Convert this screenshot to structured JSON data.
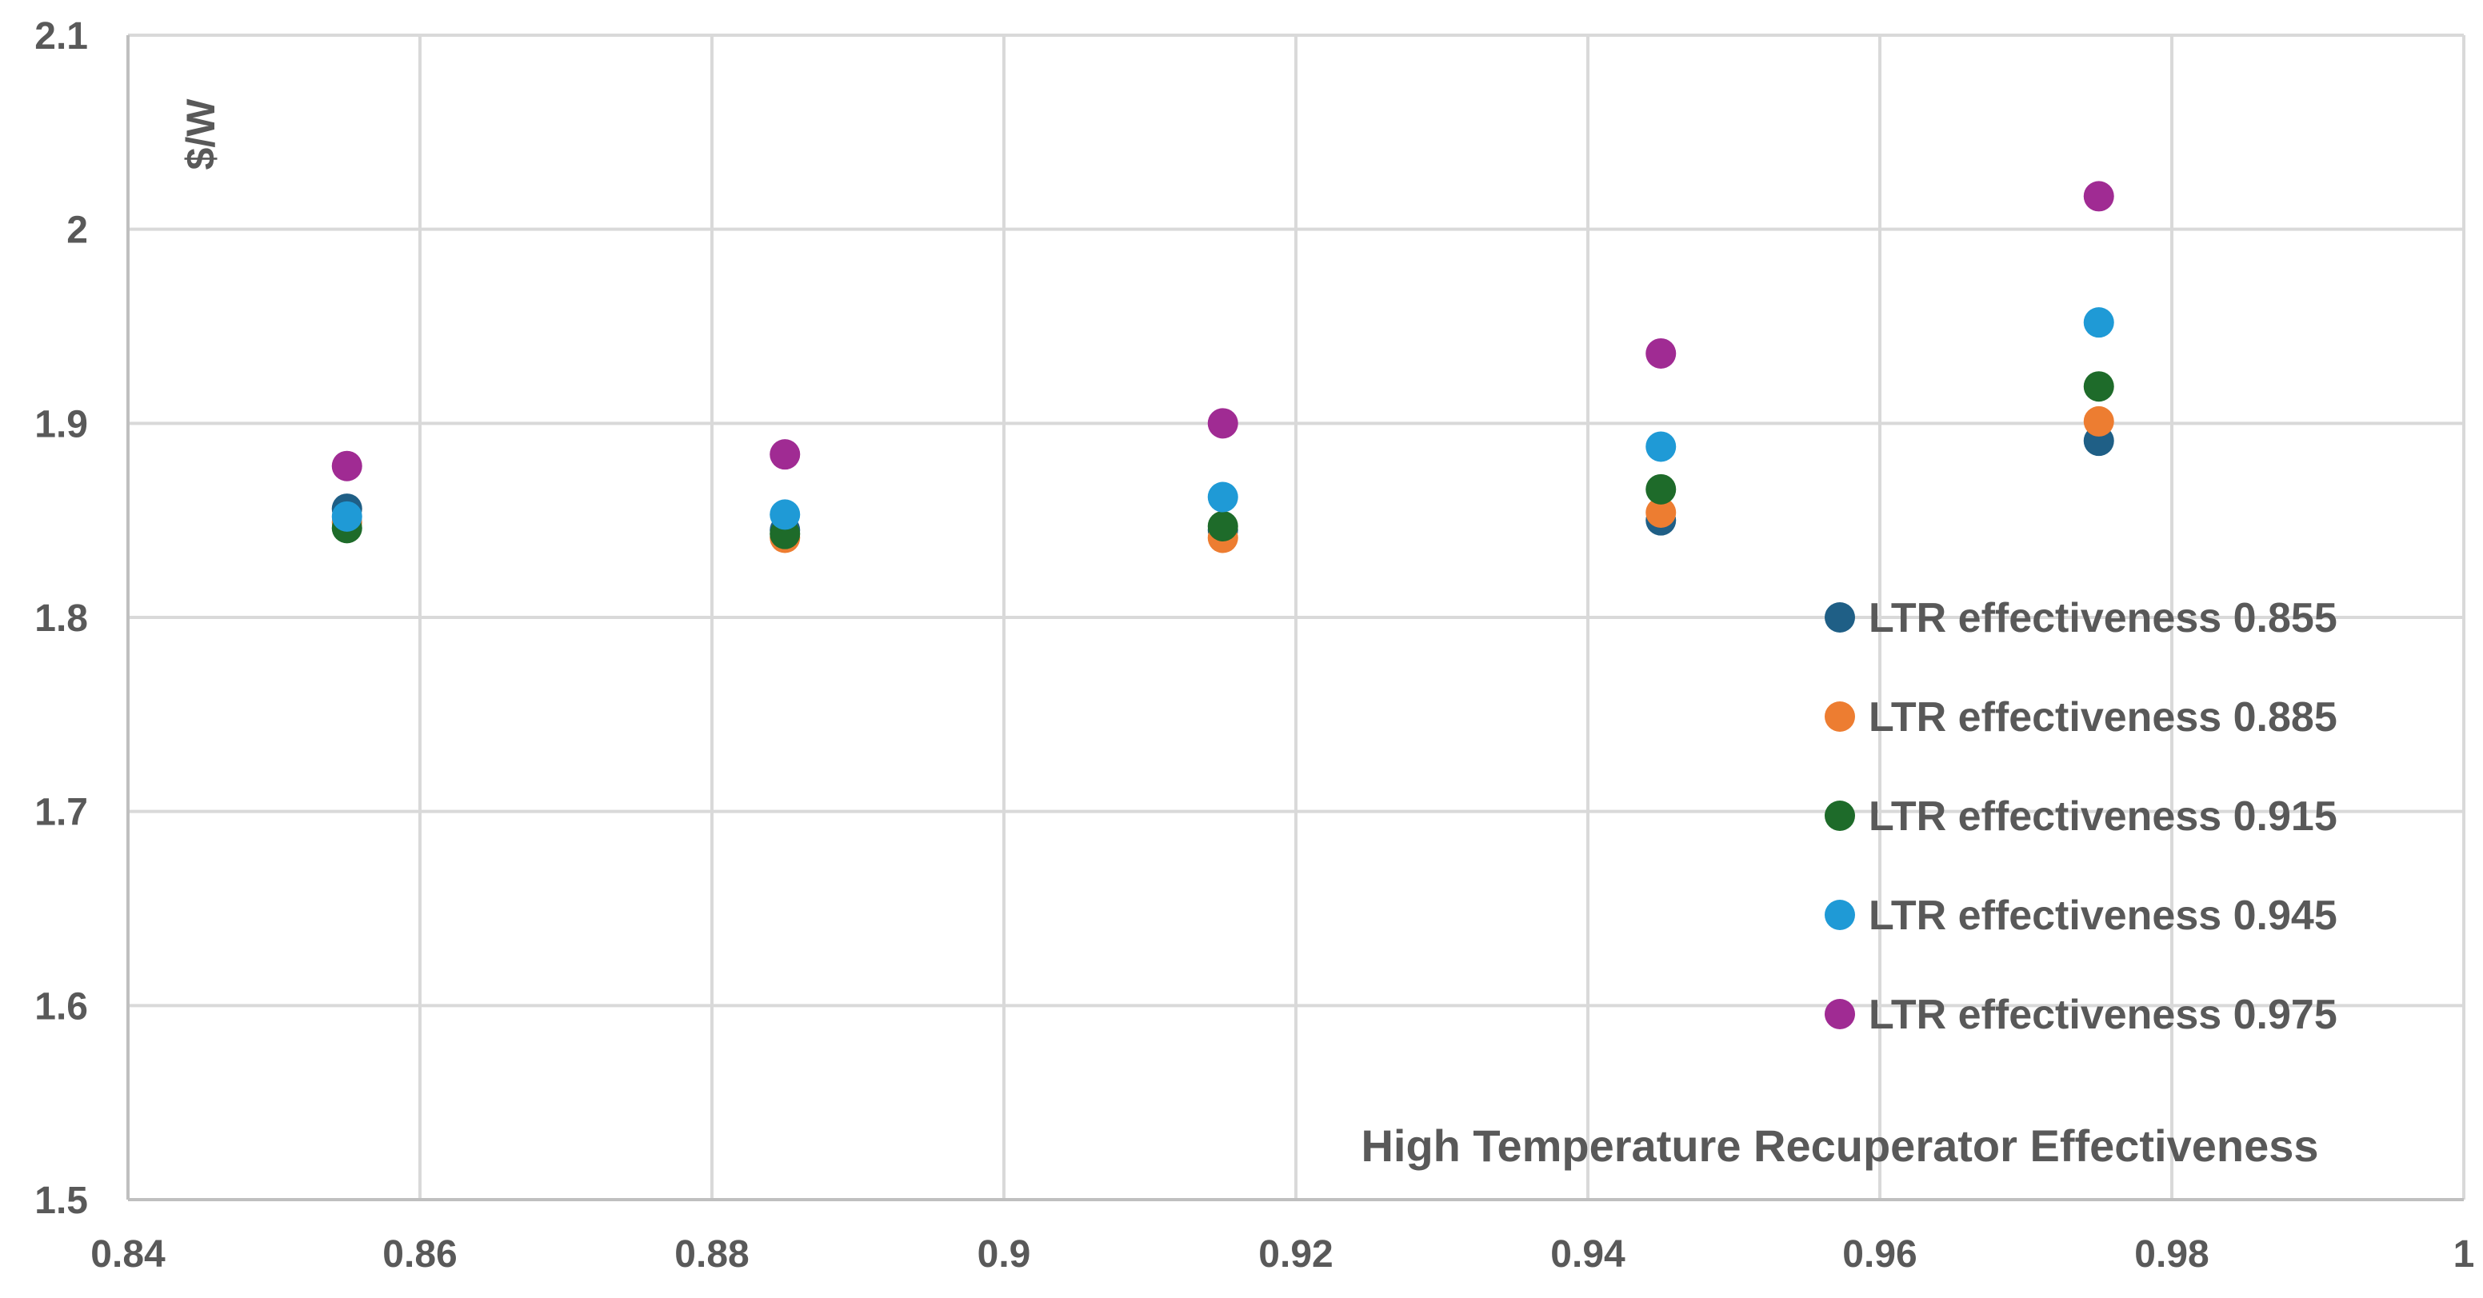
{
  "chart_data": {
    "type": "scatter",
    "title": "",
    "xlabel": "High Temperature Recuperator Effectiveness",
    "ylabel": "$/W",
    "xlim": [
      0.84,
      1.0
    ],
    "ylim": [
      1.5,
      2.1
    ],
    "x_ticks": [
      0.84,
      0.86,
      0.88,
      0.9,
      0.92,
      0.94,
      0.96,
      0.98,
      1
    ],
    "x_tick_labels": [
      "0.84",
      "0.86",
      "0.88",
      "0.9",
      "0.92",
      "0.94",
      "0.96",
      "0.98",
      "1"
    ],
    "y_ticks": [
      1.5,
      1.6,
      1.7,
      1.8,
      1.9,
      2.0,
      2.1
    ],
    "y_tick_labels": [
      "1.5",
      "1.6",
      "1.7",
      "1.8",
      "1.9",
      "2",
      "2.1"
    ],
    "grid": true,
    "legend_position": "right",
    "x": [
      0.855,
      0.885,
      0.915,
      0.945,
      0.975
    ],
    "series": [
      {
        "name": "LTR effectiveness 0.855",
        "color": "#1f5f86",
        "values": [
          1.856,
          1.845,
          1.845,
          1.85,
          1.891
        ]
      },
      {
        "name": "LTR effectiveness 0.885",
        "color": "#ed7d31",
        "values": [
          1.849,
          1.841,
          1.841,
          1.854,
          1.901
        ]
      },
      {
        "name": "LTR effectiveness 0.915",
        "color": "#1e6b2a",
        "values": [
          1.846,
          1.843,
          1.847,
          1.866,
          1.919
        ]
      },
      {
        "name": "LTR effectiveness 0.945",
        "color": "#1f9ad6",
        "values": [
          1.852,
          1.853,
          1.862,
          1.888,
          1.952
        ]
      },
      {
        "name": "LTR effectiveness 0.975",
        "color": "#a02b93",
        "values": [
          1.878,
          1.884,
          1.9,
          1.936,
          2.017
        ]
      }
    ]
  }
}
